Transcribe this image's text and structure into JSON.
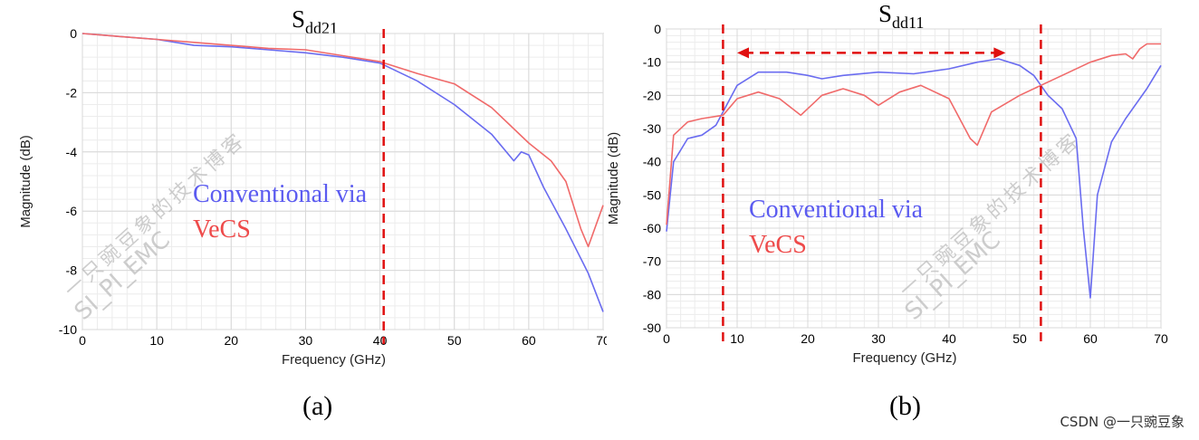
{
  "credit": "CSDN @一只豌豆象",
  "colors": {
    "conventional": "#6a6cf0",
    "vecs": "#f06a6a",
    "marker": "#e01010",
    "grid": "#d8d8d8"
  },
  "chart_data": [
    {
      "type": "line",
      "panel_label": "(a)",
      "title_main": "S",
      "title_sub": "dd21",
      "xlabel": "Frequency (GHz)",
      "ylabel": "Magnitude (dB)",
      "xlim": [
        0,
        70
      ],
      "ylim": [
        -10,
        0
      ],
      "xticks": [
        0,
        10,
        20,
        30,
        40,
        50,
        60,
        70
      ],
      "yticks": [
        0,
        -2,
        -4,
        -6,
        -8,
        -10
      ],
      "grid": true,
      "legend": [
        "Conventional via",
        "VeCS"
      ],
      "watermark": [
        "一只豌豆象的技术博客",
        "SI_PI_EMC"
      ],
      "series": [
        {
          "name": "Conventional via",
          "x": [
            0,
            5,
            10,
            15,
            20,
            25,
            30,
            35,
            40,
            45,
            50,
            55,
            58,
            59,
            60,
            62,
            65,
            68,
            70
          ],
          "y": [
            0,
            -0.1,
            -0.2,
            -0.4,
            -0.45,
            -0.55,
            -0.65,
            -0.8,
            -1.0,
            -1.6,
            -2.4,
            -3.4,
            -4.3,
            -4.0,
            -4.1,
            -5.2,
            -6.6,
            -8.1,
            -9.4
          ]
        },
        {
          "name": "VeCS",
          "x": [
            0,
            5,
            10,
            15,
            20,
            25,
            30,
            35,
            40,
            45,
            50,
            55,
            60,
            63,
            65,
            67,
            68,
            70
          ],
          "y": [
            0,
            -0.1,
            -0.2,
            -0.3,
            -0.4,
            -0.5,
            -0.55,
            -0.75,
            -0.95,
            -1.35,
            -1.7,
            -2.5,
            -3.7,
            -4.3,
            -5.0,
            -6.6,
            -7.2,
            -5.8
          ]
        }
      ],
      "markers": {
        "vlines": [
          40.5
        ]
      }
    },
    {
      "type": "line",
      "panel_label": "(b)",
      "title_main": "S",
      "title_sub": "dd11",
      "xlabel": "Frequency (GHz)",
      "ylabel": "Magnitude (dB)",
      "xlim": [
        0,
        70
      ],
      "ylim": [
        -90,
        0
      ],
      "xticks": [
        0,
        10,
        20,
        30,
        40,
        50,
        60,
        70
      ],
      "yticks": [
        0,
        -10,
        -20,
        -30,
        -40,
        -50,
        -60,
        -70,
        -80,
        -90
      ],
      "grid": true,
      "legend": [
        "Conventional via",
        "VeCS"
      ],
      "watermark": [
        "一只豌豆象的技术博客",
        "SI_PI_EMC"
      ],
      "series": [
        {
          "name": "Conventional via",
          "x": [
            0,
            1,
            3,
            5,
            7,
            10,
            13,
            17,
            20,
            22,
            25,
            30,
            35,
            40,
            44,
            47,
            50,
            52,
            54,
            56,
            58,
            59,
            60,
            61,
            63,
            65,
            68,
            70
          ],
          "y": [
            -61,
            -40,
            -33,
            -32,
            -29,
            -17,
            -13,
            -13,
            -14,
            -15,
            -14,
            -13,
            -13.5,
            -12,
            -10,
            -9,
            -11,
            -14,
            -20,
            -24,
            -33,
            -60,
            -81,
            -50,
            -34,
            -27,
            -18,
            -11
          ]
        },
        {
          "name": "VeCS",
          "x": [
            0,
            1,
            3,
            5,
            8,
            10,
            13,
            16,
            19,
            22,
            25,
            28,
            30,
            33,
            36,
            40,
            43,
            44,
            46,
            50,
            53,
            57,
            60,
            63,
            65,
            66,
            67,
            68,
            70
          ],
          "y": [
            -59,
            -32,
            -28,
            -27,
            -26,
            -21,
            -19,
            -21,
            -26,
            -20,
            -18,
            -20,
            -23,
            -19,
            -17,
            -21,
            -33,
            -35,
            -25,
            -20,
            -17,
            -13,
            -10,
            -8,
            -7.5,
            -9,
            -6,
            -4.5,
            -4.5
          ]
        }
      ],
      "markers": {
        "vlines": [
          8,
          53
        ],
        "arrow": [
          10,
          48,
          -8
        ]
      }
    }
  ]
}
